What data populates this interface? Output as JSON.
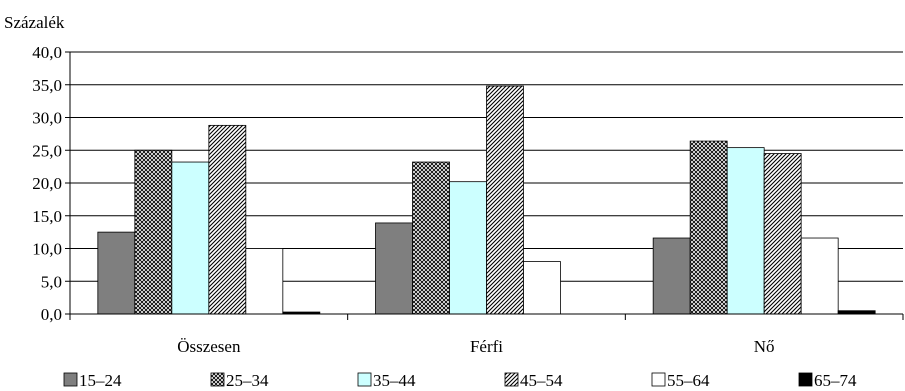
{
  "chart_data": {
    "type": "bar",
    "ylabel": "Százalék",
    "xlabel": "",
    "ylim": [
      0,
      40
    ],
    "y_tick_step": 5,
    "y_tick_labels": [
      "0,0",
      "5,0",
      "10,0",
      "15,0",
      "20,0",
      "25,0",
      "30,0",
      "35,0",
      "40,0"
    ],
    "categories": [
      "Összesen",
      "Férfi",
      "Nő"
    ],
    "grid": true,
    "legend_position": "bottom",
    "series": [
      {
        "name": "15–24",
        "values": [
          12.5,
          13.9,
          11.6
        ],
        "fill": "#7f7f7f",
        "pattern": "solid"
      },
      {
        "name": "25–34",
        "values": [
          25.0,
          23.2,
          26.4
        ],
        "fill": "#ffffff",
        "pattern": "crosshatch"
      },
      {
        "name": "35–44",
        "values": [
          23.2,
          20.2,
          25.4
        ],
        "fill": "#ccffff",
        "pattern": "solid"
      },
      {
        "name": "45–54",
        "values": [
          28.8,
          34.8,
          24.5
        ],
        "fill": "#ffffff",
        "pattern": "diagonal"
      },
      {
        "name": "55–64",
        "values": [
          10.0,
          8.0,
          11.6
        ],
        "fill": "#ffffff",
        "pattern": "solid"
      },
      {
        "name": "65–74",
        "values": [
          0.3,
          0.0,
          0.5
        ],
        "fill": "#000000",
        "pattern": "solid"
      }
    ]
  }
}
